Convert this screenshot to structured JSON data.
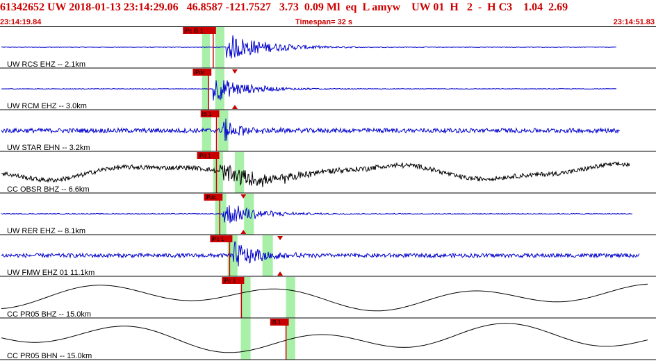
{
  "header": {
    "line": "61342652 UW 2018-01-13 23:14:29.06   46.8587 -121.7527   3.73  0.09 Ml  eq  L amyw    UW 01  H   2  -  H C3    1.04  2.69",
    "start_time": "23:14:19.84",
    "timespan": "Timespan=  32 s",
    "end_time": "23:14:51.83"
  },
  "colors": {
    "header_text": "#cc0000",
    "trace_blue": "#0000cc",
    "trace_black": "#000000",
    "pick_red": "#cc0000",
    "window_green": "#a8f0a8",
    "divider": "#000000"
  },
  "traces": [
    {
      "label": "UW RCS EHZ -- 2.1km",
      "color": "blue",
      "kind": "seismic",
      "onset": 0.345,
      "noise": 0.03,
      "amp": 0.8,
      "decay": 0.06,
      "end": 0.94,
      "picks": [
        {
          "label": "iPc iS 1",
          "t": 0.325
        }
      ],
      "green": [
        [
          0.308,
          0.32
        ],
        [
          0.328,
          0.342
        ]
      ]
    },
    {
      "label": "UW RCM EHZ -- 3.0km",
      "color": "blue",
      "kind": "seismic",
      "onset": 0.325,
      "noise": 0.03,
      "amp": 0.75,
      "decay": 0.05,
      "end": 0.94,
      "picks": [
        {
          "label": "iPdc",
          "t": 0.318
        }
      ],
      "green": [
        [
          0.308,
          0.318
        ],
        [
          0.328,
          0.342
        ]
      ],
      "triangles": [
        0.358
      ]
    },
    {
      "label": "UW STAR EHN -- 3.2km",
      "color": "blue",
      "kind": "seismic",
      "onset": 0.338,
      "noise": 0.25,
      "amp": 0.7,
      "decay": 0.03,
      "end": 0.945,
      "picks": [
        {
          "label": "iS 1",
          "t": 0.33
        }
      ],
      "green": [
        [
          0.308,
          0.322
        ],
        [
          0.332,
          0.348
        ]
      ]
    },
    {
      "label": "CC OBSR BHZ -- 6.6km",
      "color": "black",
      "kind": "long",
      "onset": 0.335,
      "noise": 0.25,
      "amp": 0.55,
      "decay": 0.1,
      "end": 0.96,
      "picks": [
        {
          "label": "iPd 1",
          "t": 0.33
        }
      ],
      "green": [
        [
          0.325,
          0.34
        ],
        [
          0.358,
          0.372
        ]
      ]
    },
    {
      "label": "UW RER EHZ -- 8.1km",
      "color": "blue",
      "kind": "seismic",
      "onset": 0.34,
      "noise": 0.04,
      "amp": 0.7,
      "decay": 0.05,
      "end": 0.965,
      "picks": [
        {
          "label": "iPdc",
          "t": 0.335
        }
      ],
      "green": [
        [
          0.328,
          0.345
        ],
        [
          0.372,
          0.387
        ]
      ],
      "triangles": [
        0.371
      ]
    },
    {
      "label": "UW FMW EHZ 01 11.1km",
      "color": "blue",
      "kind": "seismic",
      "onset": 0.355,
      "noise": 0.22,
      "amp": 0.8,
      "decay": 0.04,
      "end": 0.975,
      "picks": [
        {
          "label": "iPc 1",
          "t": 0.35
        }
      ],
      "green": [
        [
          0.347,
          0.362
        ],
        [
          0.4,
          0.416
        ]
      ],
      "triangles": [
        0.427
      ]
    },
    {
      "label": "CC PR05 BHZ -- 15.0km",
      "color": "black",
      "kind": "slow",
      "onset": 0.365,
      "noise": 0.0,
      "amp": 0.85,
      "decay": 0.1,
      "end": 0.99,
      "picks": [
        {
          "label": "iPc 1",
          "t": 0.368
        }
      ],
      "green": [
        [
          0.367,
          0.382
        ],
        [
          0.436,
          0.45
        ]
      ]
    },
    {
      "label": "CC PR05 BHN -- 15.0km",
      "color": "black",
      "kind": "slow",
      "onset": 0.37,
      "noise": 0.0,
      "amp": 0.95,
      "decay": 0.1,
      "end": 0.99,
      "picks": [
        {
          "label": "iS 1",
          "t": 0.436
        }
      ],
      "green": [
        [
          0.367,
          0.382
        ],
        [
          0.436,
          0.45
        ]
      ]
    }
  ]
}
